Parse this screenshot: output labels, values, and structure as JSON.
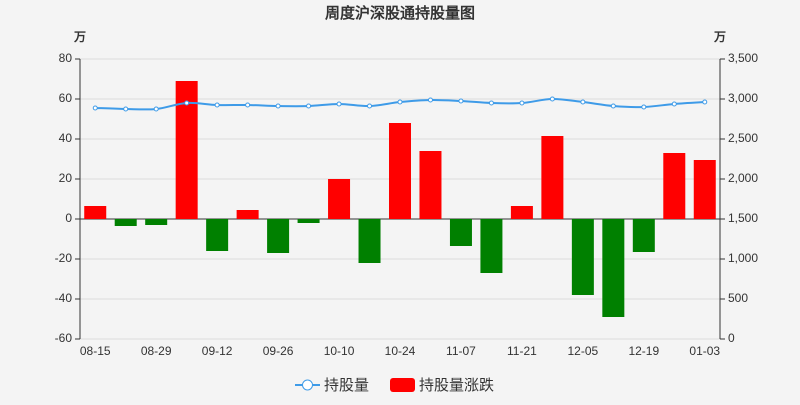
{
  "chart_data": {
    "type": "bar-line",
    "title": "周度沪深股通持股量图",
    "y_unit": "万",
    "y2_unit": "万",
    "categories": [
      "08-15",
      null,
      "08-29",
      null,
      "09-12",
      null,
      "09-26",
      null,
      "10-10",
      null,
      "10-24",
      null,
      "11-07",
      null,
      "11-21",
      null,
      "12-05",
      null,
      "12-19",
      null,
      "01-03"
    ],
    "series": [
      {
        "name": "持股量",
        "type": "line",
        "axis": "y2",
        "color": "#3e9be8",
        "values": [
          2888,
          2875,
          2875,
          2950,
          2925,
          2925,
          2912,
          2912,
          2938,
          2912,
          2962,
          2988,
          2975,
          2950,
          2950,
          3000,
          2962,
          2912,
          2900,
          2938,
          2962
        ]
      },
      {
        "name": "持股量涨跌",
        "type": "bar",
        "color_positive": "#ff0000",
        "color_negative": "#008000",
        "values": [
          6.5,
          -3.5,
          -3,
          69,
          -16,
          4.5,
          -17,
          -2,
          20,
          -22,
          48,
          34,
          -13.5,
          -27,
          6.5,
          41.5,
          -38,
          -49,
          -16.5,
          33,
          29.5
        ]
      }
    ],
    "ylim": [
      -60,
      80
    ],
    "yticks": [
      -60,
      -40,
      -20,
      0,
      20,
      40,
      60,
      80
    ],
    "y2lim": [
      0,
      3500
    ],
    "y2ticks": [
      0,
      500,
      {
        "value": 1000,
        "label": "1,000"
      },
      {
        "value": 1500,
        "label": "1,500"
      },
      {
        "value": 2000,
        "label": "2,000"
      },
      {
        "value": 2500,
        "label": "2,500"
      },
      {
        "value": 3000,
        "label": "3,000"
      },
      {
        "value": 3500,
        "label": "3,500"
      }
    ],
    "grid": true
  }
}
